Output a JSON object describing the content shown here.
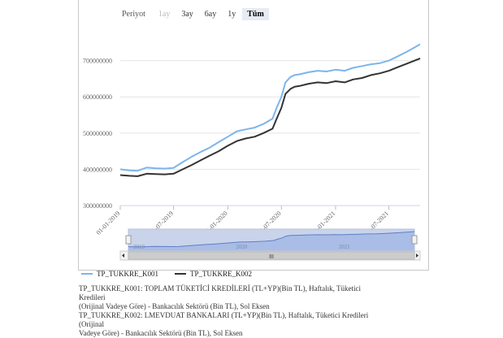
{
  "toolbar": {
    "period_label": "Periyot",
    "buttons": [
      {
        "label": "1ay",
        "state": "disabled"
      },
      {
        "label": "3ay",
        "state": "normal"
      },
      {
        "label": "6ay",
        "state": "normal"
      },
      {
        "label": "1y",
        "state": "normal"
      },
      {
        "label": "Tüm",
        "state": "active"
      }
    ]
  },
  "navigator": {
    "year_labels": [
      "2019",
      "2020",
      "2021"
    ],
    "scrollbar_grip": "III"
  },
  "legend": {
    "k001": "TP_TUKKRE_K001",
    "k002": "TP_TUKKRE_K002"
  },
  "notes": {
    "line1": "TP_TUKKRE_K001: TOPLAM TÜKETİCİ KREDİLERİ (TL+YP)(Bin TL), Haftalık, Tüketici Kredileri",
    "line2": "(Orijinal Vadeye Göre) - Bankacılık Sektörü (Bin TL), Sol Eksen",
    "line3": "TP_TUKKRE_K002: LMEVDUAT BANKALARI (TL+YP)(Bin TL), Haftalık, Tüketici Kredileri (Orijinal",
    "line4": "Vadeye Göre) - Bankacılık Sektörü (Bin TL), Sol Eksen"
  },
  "chart_data": {
    "type": "line",
    "title": "",
    "xlabel": "",
    "ylabel": "",
    "x_ticks": [
      "01-01-2019",
      "01-07-2019",
      "01-01-2020",
      "01-07-2020",
      "01-01-2021",
      "01-07-2021"
    ],
    "y_ticks": [
      "300000000",
      "400000000",
      "500000000",
      "600000000",
      "700000000"
    ],
    "ylim": [
      300000000,
      800000000
    ],
    "xlim": [
      "2019-01-01",
      "2021-10-15"
    ],
    "grid": true,
    "legend_position": "bottom-left",
    "colors": {
      "k001": "#7cb5ec",
      "k002": "#333333"
    },
    "series": [
      {
        "name": "TP_TUKKRE_K001",
        "color": "#7cb5ec",
        "x": [
          "2019-01-01",
          "2019-02-01",
          "2019-03-01",
          "2019-04-01",
          "2019-05-01",
          "2019-06-01",
          "2019-07-01",
          "2019-08-01",
          "2019-09-01",
          "2019-10-01",
          "2019-11-01",
          "2019-12-01",
          "2020-01-01",
          "2020-02-01",
          "2020-03-01",
          "2020-04-01",
          "2020-05-01",
          "2020-06-01",
          "2020-06-15",
          "2020-07-01",
          "2020-07-15",
          "2020-08-01",
          "2020-08-15",
          "2020-09-01",
          "2020-10-01",
          "2020-11-01",
          "2020-12-01",
          "2021-01-01",
          "2021-02-01",
          "2021-03-01",
          "2021-04-01",
          "2021-05-01",
          "2021-06-01",
          "2021-07-01",
          "2021-08-01",
          "2021-09-01",
          "2021-10-15"
        ],
        "values": [
          400000000,
          397000000,
          396000000,
          405000000,
          403000000,
          402000000,
          404000000,
          420000000,
          435000000,
          448000000,
          460000000,
          475000000,
          490000000,
          505000000,
          510000000,
          515000000,
          525000000,
          540000000,
          570000000,
          600000000,
          640000000,
          655000000,
          660000000,
          662000000,
          668000000,
          672000000,
          670000000,
          675000000,
          672000000,
          680000000,
          685000000,
          690000000,
          693000000,
          700000000,
          712000000,
          725000000,
          745000000
        ]
      },
      {
        "name": "TP_TUKKRE_K002",
        "color": "#333333",
        "x": [
          "2019-01-01",
          "2019-02-01",
          "2019-03-01",
          "2019-04-01",
          "2019-05-01",
          "2019-06-01",
          "2019-07-01",
          "2019-08-01",
          "2019-09-01",
          "2019-10-01",
          "2019-11-01",
          "2019-12-01",
          "2020-01-01",
          "2020-02-01",
          "2020-03-01",
          "2020-04-01",
          "2020-05-01",
          "2020-06-01",
          "2020-06-15",
          "2020-07-01",
          "2020-07-15",
          "2020-08-01",
          "2020-08-15",
          "2020-09-01",
          "2020-10-01",
          "2020-11-01",
          "2020-12-01",
          "2021-01-01",
          "2021-02-01",
          "2021-03-01",
          "2021-04-01",
          "2021-05-01",
          "2021-06-01",
          "2021-07-01",
          "2021-08-01",
          "2021-09-01",
          "2021-10-15"
        ],
        "values": [
          384000000,
          382000000,
          381000000,
          388000000,
          387000000,
          386000000,
          388000000,
          400000000,
          412000000,
          425000000,
          438000000,
          450000000,
          465000000,
          478000000,
          485000000,
          490000000,
          500000000,
          512000000,
          540000000,
          570000000,
          608000000,
          622000000,
          628000000,
          630000000,
          636000000,
          640000000,
          638000000,
          643000000,
          640000000,
          648000000,
          652000000,
          660000000,
          665000000,
          672000000,
          682000000,
          692000000,
          706000000
        ]
      }
    ]
  }
}
